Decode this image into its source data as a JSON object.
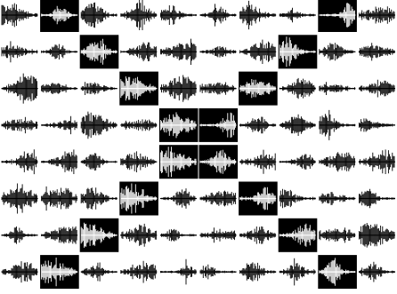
{
  "colors": {
    "background": "#ffffff",
    "ink": "#000000"
  },
  "grid": {
    "rows": 8,
    "cols": 10,
    "inverted_cells": [
      [
        0,
        1
      ],
      [
        0,
        8
      ],
      [
        1,
        2
      ],
      [
        1,
        7
      ],
      [
        2,
        3
      ],
      [
        2,
        6
      ],
      [
        3,
        4
      ],
      [
        3,
        5
      ],
      [
        4,
        4
      ],
      [
        4,
        5
      ],
      [
        5,
        3
      ],
      [
        5,
        6
      ],
      [
        6,
        2
      ],
      [
        6,
        7
      ],
      [
        7,
        1
      ],
      [
        7,
        8
      ]
    ]
  }
}
